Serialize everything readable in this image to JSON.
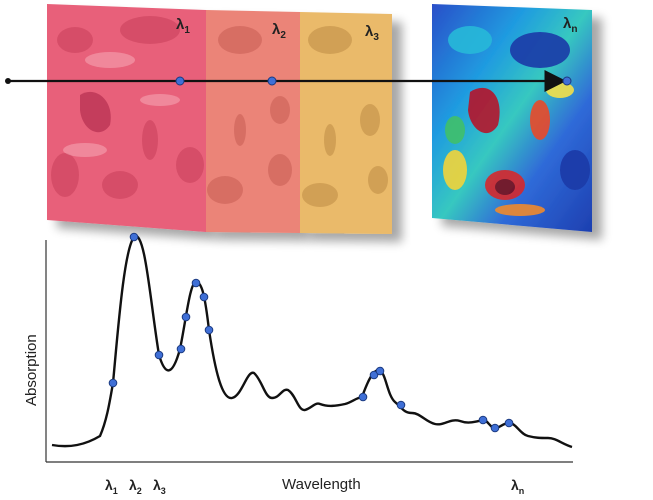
{
  "panels": [
    {
      "id": "l1",
      "label": "λ",
      "sub": "1",
      "tint": "#e8617a"
    },
    {
      "id": "l2",
      "label": "λ",
      "sub": "2",
      "tint": "#eb8478"
    },
    {
      "id": "l3",
      "label": "λ",
      "sub": "3",
      "tint": "#eaba6a"
    },
    {
      "id": "ln",
      "label": "λ",
      "sub": "n",
      "tint": "heatmap"
    }
  ],
  "spectrum": {
    "ylabel": "Absorption",
    "xlabel": "Wavelength",
    "ticks": [
      {
        "label": "λ",
        "sub": "1"
      },
      {
        "label": "λ",
        "sub": "2"
      },
      {
        "label": "λ",
        "sub": "3"
      },
      {
        "label": "λ",
        "sub": "n"
      }
    ],
    "marker_color": "#3f6fd6",
    "line_color": "#111111"
  }
}
